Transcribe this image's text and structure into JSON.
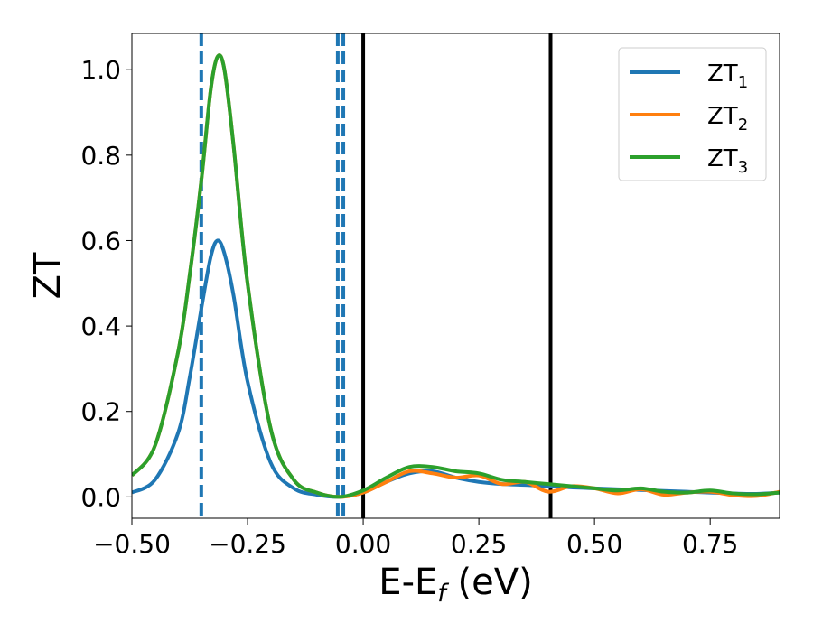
{
  "chart_data": {
    "type": "line",
    "xlabel": "E-E",
    "xlabel_sub": "f",
    "xlabel_unit": " (eV)",
    "ylabel": "ZT",
    "xlim": [
      -0.5,
      0.9
    ],
    "ylim": [
      -0.05,
      1.085
    ],
    "x_ticks": [
      -0.5,
      -0.25,
      0.0,
      0.25,
      0.5,
      0.75
    ],
    "x_tick_labels": [
      "−0.50",
      "−0.25",
      "0.00",
      "0.25",
      "0.50",
      "0.75"
    ],
    "y_ticks": [
      0.0,
      0.2,
      0.4,
      0.6,
      0.8,
      1.0
    ],
    "y_tick_labels": [
      "0.0",
      "0.2",
      "0.4",
      "0.6",
      "0.8",
      "1.0"
    ],
    "grid": false,
    "legend_position": "top-right",
    "x": [
      -0.5,
      -0.45,
      -0.4,
      -0.375,
      -0.35,
      -0.33,
      -0.315,
      -0.3,
      -0.28,
      -0.25,
      -0.2,
      -0.15,
      -0.1,
      -0.05,
      0.0,
      0.05,
      0.1,
      0.15,
      0.2,
      0.25,
      0.3,
      0.35,
      0.4,
      0.45,
      0.5,
      0.55,
      0.6,
      0.65,
      0.7,
      0.75,
      0.8,
      0.85,
      0.9
    ],
    "series": [
      {
        "name": "ZT",
        "sub": "1",
        "color": "#1f77b4",
        "values": [
          0.01,
          0.04,
          0.15,
          0.28,
          0.44,
          0.56,
          0.6,
          0.57,
          0.47,
          0.27,
          0.08,
          0.02,
          0.005,
          0.0,
          0.01,
          0.035,
          0.055,
          0.06,
          0.045,
          0.035,
          0.03,
          0.028,
          0.025,
          0.022,
          0.02,
          0.018,
          0.016,
          0.014,
          0.012,
          0.01,
          0.008,
          0.007,
          0.01
        ]
      },
      {
        "name": "ZT",
        "sub": "2",
        "color": "#ff7f0e",
        "values": [
          0.05,
          0.12,
          0.34,
          0.52,
          0.74,
          0.95,
          1.03,
          1.0,
          0.82,
          0.5,
          0.16,
          0.04,
          0.01,
          0.0,
          0.01,
          0.035,
          0.06,
          0.055,
          0.045,
          0.05,
          0.03,
          0.035,
          0.012,
          0.025,
          0.02,
          0.008,
          0.018,
          0.005,
          0.01,
          0.012,
          0.004,
          0.002,
          0.012
        ]
      },
      {
        "name": "ZT",
        "sub": "3",
        "color": "#2ca02c",
        "values": [
          0.05,
          0.12,
          0.34,
          0.52,
          0.74,
          0.95,
          1.03,
          1.0,
          0.82,
          0.5,
          0.16,
          0.04,
          0.01,
          0.0,
          0.015,
          0.045,
          0.07,
          0.07,
          0.06,
          0.055,
          0.04,
          0.035,
          0.03,
          0.025,
          0.02,
          0.015,
          0.02,
          0.012,
          0.01,
          0.015,
          0.008,
          0.006,
          0.01
        ]
      }
    ],
    "vertical_lines": [
      {
        "x": -0.35,
        "style": "dashed",
        "color": "#1f77b4"
      },
      {
        "x": -0.055,
        "style": "dashed",
        "color": "#1f77b4"
      },
      {
        "x": -0.043,
        "style": "dashed",
        "color": "#1f77b4"
      },
      {
        "x": 0.0,
        "style": "solid",
        "color": "#000000"
      },
      {
        "x": 0.405,
        "style": "solid",
        "color": "#000000"
      }
    ]
  }
}
